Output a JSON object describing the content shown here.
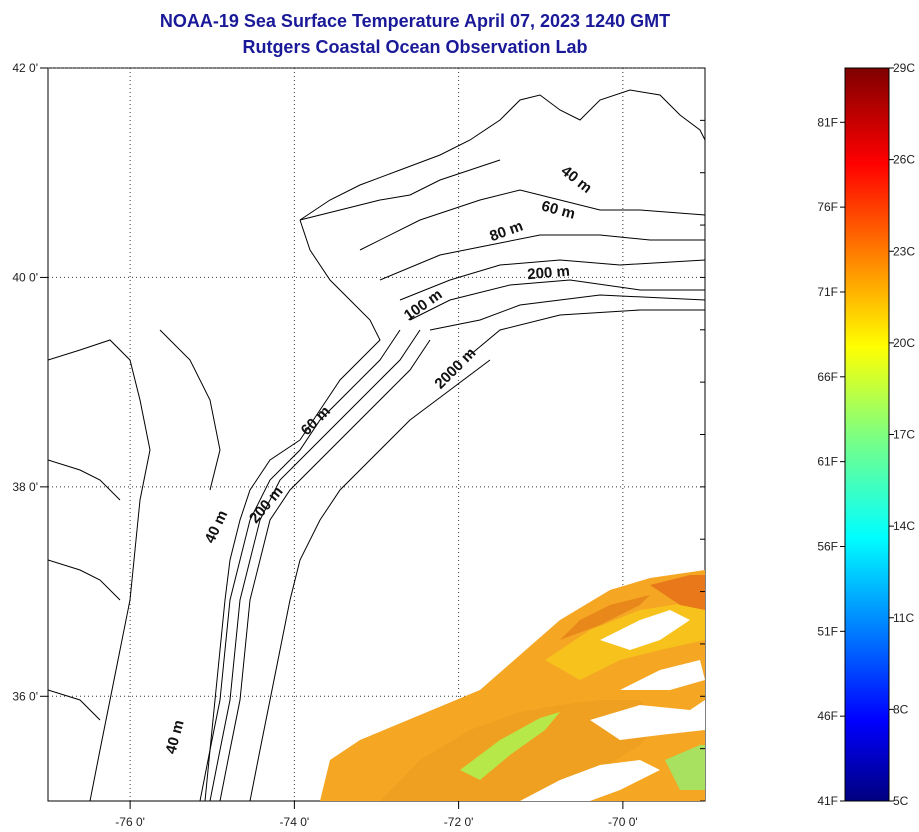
{
  "header": {
    "title": "NOAA-19 Sea Surface Temperature April 07, 2023 1240 GMT",
    "subtitle": "Rutgers Coastal Ocean Observation Lab"
  },
  "map": {
    "lon_range": [
      -77,
      -69
    ],
    "lat_range": [
      35,
      42
    ],
    "lon_ticks": [
      {
        "value": -76,
        "label": "-76 0'"
      },
      {
        "value": -74,
        "label": "-74 0'"
      },
      {
        "value": -72,
        "label": "-72 0'"
      },
      {
        "value": -70,
        "label": "-70 0'"
      }
    ],
    "lat_ticks": [
      {
        "value": 42,
        "label": "42 0'"
      },
      {
        "value": 40,
        "label": "40 0'"
      },
      {
        "value": 38,
        "label": "38 0'"
      },
      {
        "value": 36,
        "label": "36 0'"
      }
    ],
    "grid": "dotted",
    "contour_labels": [
      {
        "text": "40 m",
        "lon": -70.6,
        "lat": 40.9,
        "rotate": 38
      },
      {
        "text": "60 m",
        "lon": -70.8,
        "lat": 40.6,
        "rotate": 15
      },
      {
        "text": "80 m",
        "lon": -71.4,
        "lat": 40.4,
        "rotate": -20
      },
      {
        "text": "200 m",
        "lon": -70.9,
        "lat": 40.0,
        "rotate": -5
      },
      {
        "text": "100 m",
        "lon": -72.4,
        "lat": 39.7,
        "rotate": -35
      },
      {
        "text": "2000 m",
        "lon": -72.0,
        "lat": 39.1,
        "rotate": -45
      },
      {
        "text": "60 m",
        "lon": -73.7,
        "lat": 38.6,
        "rotate": -45
      },
      {
        "text": "200 m",
        "lon": -74.3,
        "lat": 37.8,
        "rotate": -50
      },
      {
        "text": "40 m",
        "lon": -74.9,
        "lat": 37.6,
        "rotate": -65
      },
      {
        "text": "40 m",
        "lon": -75.4,
        "lat": 35.6,
        "rotate": -75
      }
    ]
  },
  "colorbar": {
    "min_c": 5,
    "max_c": 29,
    "celsius_labels": [
      "29C",
      "26C",
      "23C",
      "20C",
      "17C",
      "14C",
      "11C",
      "8C",
      "5C"
    ],
    "fahrenheit_labels": [
      "81F",
      "76F",
      "71F",
      "66F",
      "61F",
      "56F",
      "51F",
      "46F",
      "41F"
    ],
    "colormap": "jet"
  }
}
